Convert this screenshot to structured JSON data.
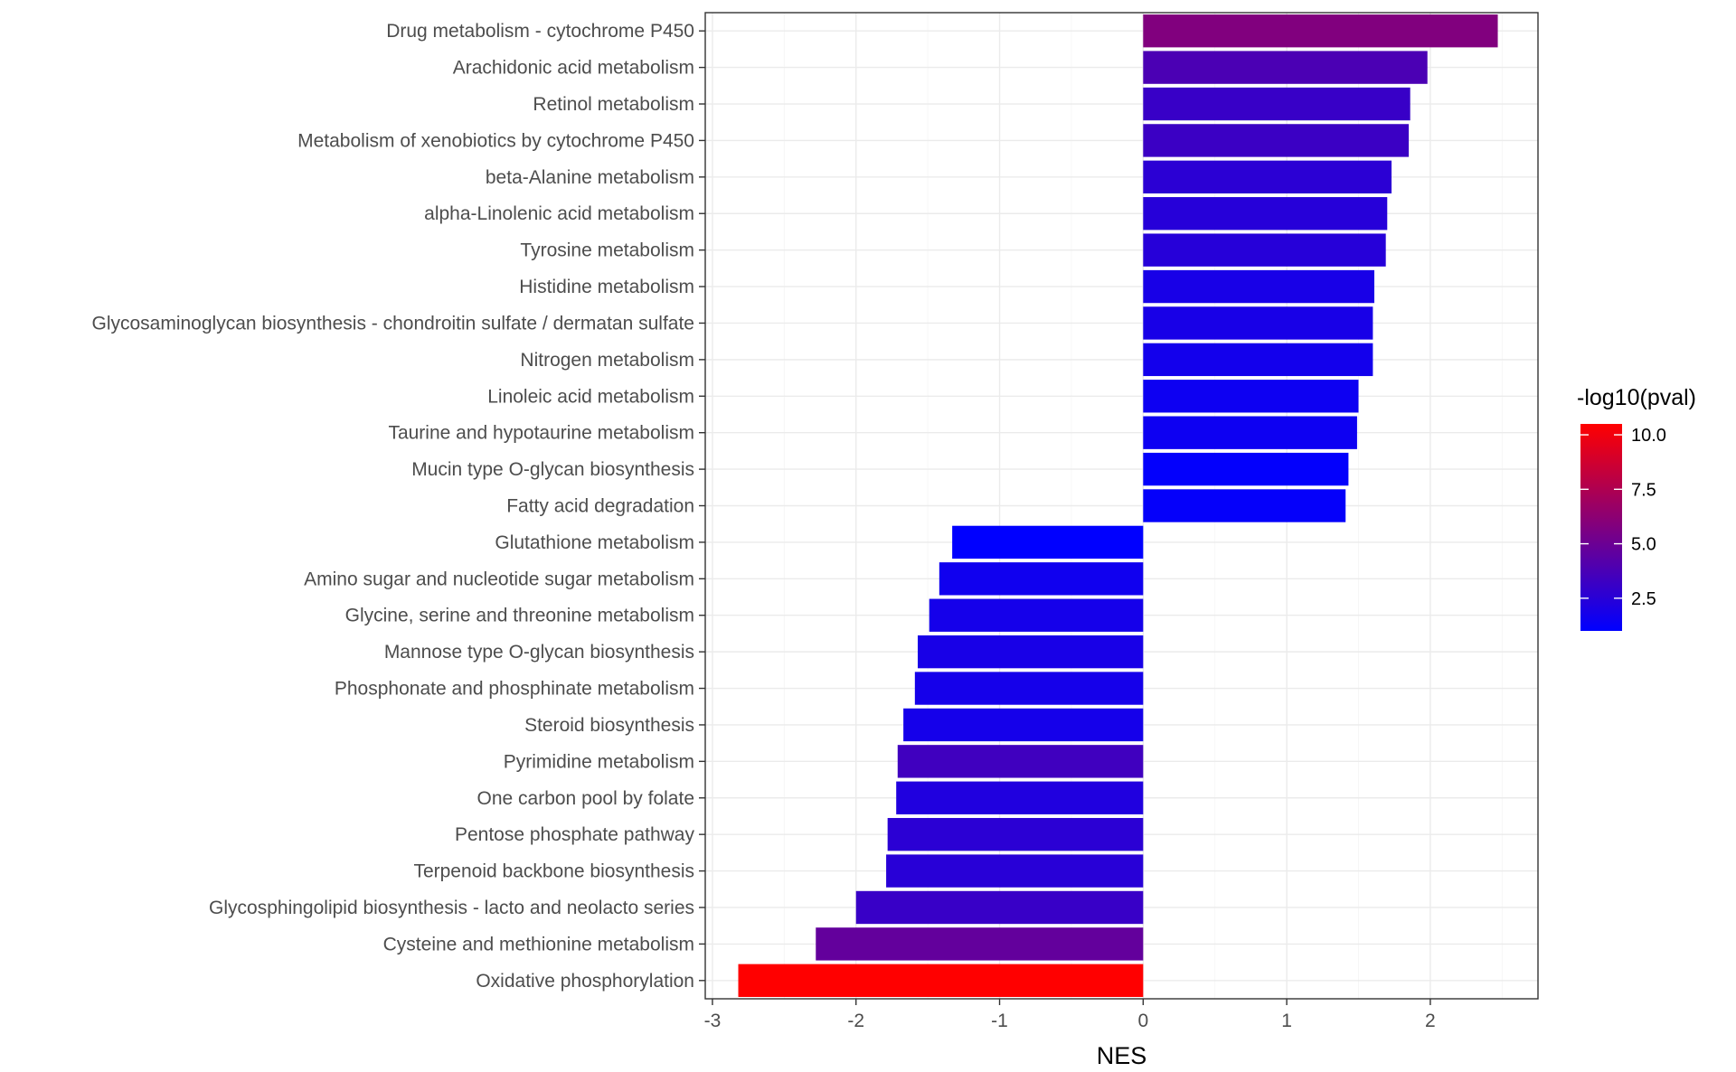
{
  "chart_data": {
    "type": "bar",
    "orientation": "horizontal",
    "title": "",
    "xlabel": "NES",
    "ylabel": "",
    "xlim": [
      -3.05,
      2.75
    ],
    "x_ticks": [
      -3,
      -2,
      -1,
      0,
      1,
      2
    ],
    "x_tick_labels": [
      "-3",
      "-2",
      "-1",
      "0",
      "1",
      "2"
    ],
    "grid": true,
    "categories": [
      "Drug metabolism - cytochrome P450",
      "Arachidonic acid metabolism",
      "Retinol metabolism",
      "Metabolism of xenobiotics by cytochrome P450",
      "beta-Alanine metabolism",
      "alpha-Linolenic acid metabolism",
      "Tyrosine metabolism",
      "Histidine metabolism",
      "Glycosaminoglycan biosynthesis - chondroitin sulfate / dermatan sulfate",
      "Nitrogen metabolism",
      "Linoleic acid metabolism",
      "Taurine and hypotaurine metabolism",
      "Mucin type O-glycan biosynthesis",
      "Fatty acid degradation",
      "Glutathione metabolism",
      "Amino sugar and nucleotide sugar metabolism",
      "Glycine, serine and threonine metabolism",
      "Mannose type O-glycan biosynthesis",
      "Phosphonate and phosphinate metabolism",
      "Steroid biosynthesis",
      "Pyrimidine metabolism",
      "One carbon pool by folate",
      "Pentose phosphate pathway",
      "Terpenoid backbone biosynthesis",
      "Glycosphingolipid biosynthesis - lacto and neolacto series",
      "Cysteine and methionine metabolism",
      "Oxidative phosphorylation"
    ],
    "values": [
      2.47,
      1.98,
      1.86,
      1.85,
      1.73,
      1.7,
      1.69,
      1.61,
      1.6,
      1.6,
      1.5,
      1.49,
      1.43,
      1.41,
      -1.33,
      -1.42,
      -1.49,
      -1.57,
      -1.59,
      -1.67,
      -1.71,
      -1.72,
      -1.78,
      -1.79,
      -2.0,
      -2.28,
      -2.82
    ],
    "color_values": [
      5.8,
      3.8,
      3.1,
      3.2,
      2.6,
      2.4,
      2.4,
      1.9,
      1.9,
      1.7,
      1.5,
      1.5,
      1.1,
      1.2,
      1.0,
      1.6,
      1.8,
      1.9,
      1.8,
      1.8,
      3.4,
      2.2,
      2.6,
      2.5,
      3.1,
      4.7,
      10.5
    ],
    "legend": {
      "title": "-log10(pval)",
      "position": "right",
      "range": [
        1.0,
        10.5
      ],
      "ticks": [
        2.5,
        5.0,
        7.5,
        10.0
      ],
      "tick_labels": [
        "2.5",
        "5.0",
        "7.5",
        "10.0"
      ],
      "low_color": "#0000ff",
      "high_color": "#ff0000"
    }
  }
}
